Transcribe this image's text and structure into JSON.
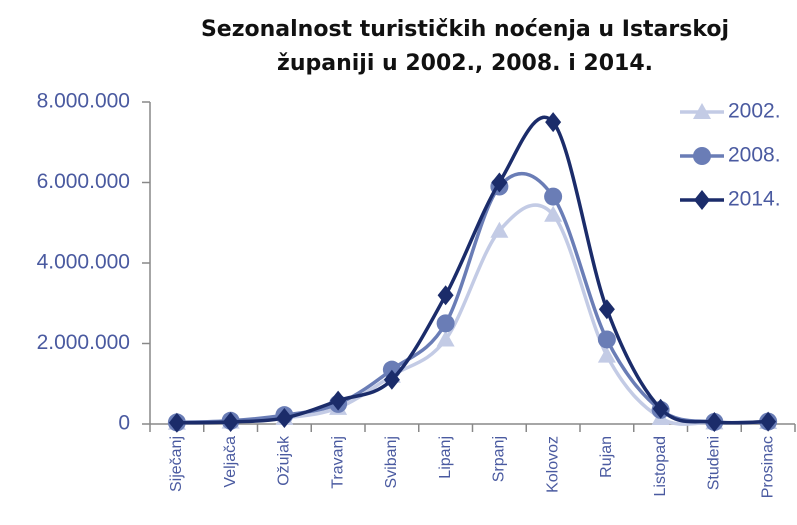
{
  "chart_data": {
    "type": "line",
    "title": [
      "Sezonalnost turističkih noćenja u Istarskoj",
      "županiji  u 2002., 2008. i 2014."
    ],
    "categories": [
      "Siječanj",
      "Veljača",
      "Ožujak",
      "Travanj",
      "Svibanj",
      "Lipanj",
      "Srpanj",
      "Kolovoz",
      "Rujan",
      "Listopad",
      "Studeni",
      "Prosinac"
    ],
    "series": [
      {
        "name": "2002.",
        "color": "#c3cbe5",
        "marker": "triangle",
        "values": [
          30000,
          60000,
          150000,
          400000,
          1200000,
          2100000,
          4800000,
          5200000,
          1700000,
          150000,
          40000,
          50000
        ]
      },
      {
        "name": "2008.",
        "color": "#6a7db6",
        "marker": "circle",
        "values": [
          40000,
          80000,
          220000,
          500000,
          1350000,
          2500000,
          5900000,
          5650000,
          2100000,
          350000,
          50000,
          60000
        ]
      },
      {
        "name": "2014.",
        "color": "#1b2c6a",
        "marker": "diamond",
        "values": [
          30000,
          50000,
          150000,
          580000,
          1100000,
          3200000,
          6000000,
          7500000,
          2850000,
          380000,
          50000,
          60000
        ]
      }
    ],
    "ylim": [
      0,
      8000000
    ],
    "yticks": [
      0,
      {
        "value": 2000000,
        "label": "2.000.000"
      },
      {
        "value": 4000000,
        "label": "4.000.000"
      },
      {
        "value": 6000000,
        "label": "6.000.000"
      },
      {
        "value": 8000000,
        "label": "8.000.000"
      }
    ],
    "smooth": true,
    "grid": false,
    "legend": "top-right"
  }
}
